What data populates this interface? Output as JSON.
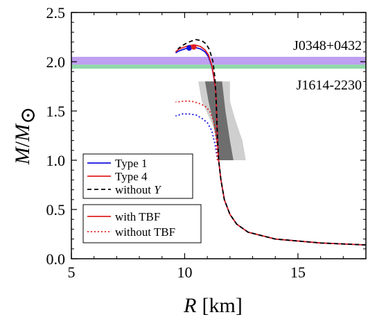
{
  "chart_data": {
    "type": "line",
    "xlabel": {
      "var": "R",
      "unit": "[km]"
    },
    "ylabel": {
      "var": "M",
      "slash": "/",
      "sub_var": "M",
      "sub_symbol": "⊙"
    },
    "xlim": [
      5,
      18
    ],
    "ylim": [
      0.0,
      2.5
    ],
    "x_ticks": [
      5,
      10,
      15
    ],
    "y_ticks": [
      0.0,
      0.5,
      1.0,
      1.5,
      2.0,
      2.5
    ],
    "x_tick_labels": [
      "5",
      "10",
      "15"
    ],
    "y_tick_labels": [
      "0.0",
      "0.5",
      "1.0",
      "1.5",
      "2.0",
      "2.5"
    ],
    "grid": false,
    "bands": [
      {
        "name": "J0348+0432",
        "y_range": [
          1.97,
          2.05
        ],
        "color": "#bf9ff0"
      },
      {
        "name": "J1614-2230",
        "y_range": [
          1.93,
          1.97
        ],
        "color": "#8fd8a8"
      }
    ],
    "constraint_regions": [
      {
        "name": "outer",
        "color": "#cfcfcf",
        "polygon": [
          [
            10.2,
            1.8
          ],
          [
            12.0,
            1.8
          ],
          [
            12.0,
            1.6
          ],
          [
            12.25,
            1.4
          ],
          [
            12.55,
            1.2
          ],
          [
            12.7,
            1.0
          ],
          [
            11.6,
            1.0
          ],
          [
            11.5,
            1.2
          ],
          [
            11.15,
            1.4
          ],
          [
            10.75,
            1.6
          ],
          [
            10.6,
            1.8
          ]
        ]
      },
      {
        "name": "inner",
        "color": "#6e6e6e",
        "polygon": [
          [
            10.9,
            1.8
          ],
          [
            11.65,
            1.8
          ],
          [
            11.8,
            1.5
          ],
          [
            12.0,
            1.2
          ],
          [
            12.15,
            1.0
          ],
          [
            11.5,
            1.0
          ],
          [
            11.4,
            1.2
          ],
          [
            11.25,
            1.4
          ],
          [
            11.05,
            1.6
          ]
        ]
      }
    ],
    "series": [
      {
        "name": "Type 1",
        "color": "#1010e0",
        "style": "solid",
        "x": [
          18.0,
          16.0,
          14.0,
          12.8,
          12.3,
          12.0,
          11.75,
          11.6,
          11.5,
          11.45,
          11.42,
          11.4,
          11.37,
          11.3,
          11.2,
          11.05,
          10.9,
          10.7,
          10.45,
          10.2,
          10.0,
          9.75,
          9.6
        ],
        "y": [
          0.14,
          0.16,
          0.2,
          0.27,
          0.35,
          0.45,
          0.6,
          0.8,
          1.0,
          1.2,
          1.4,
          1.55,
          1.7,
          1.82,
          1.95,
          2.05,
          2.1,
          2.13,
          2.145,
          2.14,
          2.13,
          2.11,
          2.09
        ]
      },
      {
        "name": "Type 4",
        "color": "#e02020",
        "style": "solid",
        "x": [
          18.0,
          16.0,
          14.0,
          12.8,
          12.3,
          12.0,
          11.75,
          11.6,
          11.5,
          11.45,
          11.42,
          11.4,
          11.37,
          11.3,
          11.2,
          11.05,
          10.9,
          10.7,
          10.45,
          10.2,
          10.0,
          9.75,
          9.6
        ],
        "y": [
          0.14,
          0.16,
          0.2,
          0.27,
          0.35,
          0.45,
          0.6,
          0.8,
          1.0,
          1.2,
          1.4,
          1.55,
          1.7,
          1.83,
          1.96,
          2.07,
          2.12,
          2.155,
          2.17,
          2.165,
          2.15,
          2.13,
          2.1
        ]
      },
      {
        "name": "without Y",
        "color": "#000000",
        "style": "dashed",
        "x": [
          18.0,
          16.0,
          14.0,
          12.8,
          12.3,
          12.0,
          11.75,
          11.6,
          11.5,
          11.45,
          11.42,
          11.4,
          11.37,
          11.33,
          11.25,
          11.1,
          10.95,
          10.75,
          10.5,
          10.3,
          10.1,
          9.9,
          9.7
        ],
        "y": [
          0.14,
          0.16,
          0.2,
          0.27,
          0.35,
          0.45,
          0.6,
          0.8,
          1.0,
          1.2,
          1.4,
          1.55,
          1.7,
          1.85,
          2.0,
          2.12,
          2.18,
          2.215,
          2.225,
          2.21,
          2.19,
          2.165,
          2.13
        ]
      },
      {
        "name": "Type 1 without TBF",
        "color": "#1010e0",
        "style": "dotted",
        "x": [
          11.45,
          11.35,
          11.2,
          11.0,
          10.8,
          10.5,
          10.2,
          9.9,
          9.6
        ],
        "y": [
          1.0,
          1.15,
          1.3,
          1.38,
          1.42,
          1.46,
          1.47,
          1.47,
          1.45
        ]
      },
      {
        "name": "Type 4 without TBF",
        "color": "#e02020",
        "style": "dotted",
        "x": [
          11.45,
          11.4,
          11.3,
          11.1,
          10.9,
          10.6,
          10.3,
          10.0,
          9.6
        ],
        "y": [
          1.0,
          1.2,
          1.38,
          1.5,
          1.55,
          1.58,
          1.6,
          1.6,
          1.59
        ]
      }
    ],
    "markers": [
      {
        "series": "Type 1",
        "x": 10.2,
        "y": 2.14,
        "color": "#1010e0"
      },
      {
        "series": "Type 4",
        "x": 10.4,
        "y": 2.15,
        "color": "#e02020"
      }
    ],
    "legend_1": {
      "placement": "lower-left",
      "entries": [
        {
          "label_a": "Type 1",
          "label_b": "",
          "color": "#1010e0",
          "style": "solid"
        },
        {
          "label_a": "Type 4",
          "label_b": "",
          "color": "#e02020",
          "style": "solid"
        },
        {
          "label_a": "without ",
          "label_b": "Y",
          "color": "#000000",
          "style": "dashed"
        }
      ]
    },
    "legend_2": {
      "placement": "lower-left",
      "entries": [
        {
          "label": " with TBF",
          "color": "#e02020",
          "style": "solid"
        },
        {
          "label": "without TBF",
          "color": "#e02020",
          "style": "dotted"
        }
      ]
    }
  }
}
